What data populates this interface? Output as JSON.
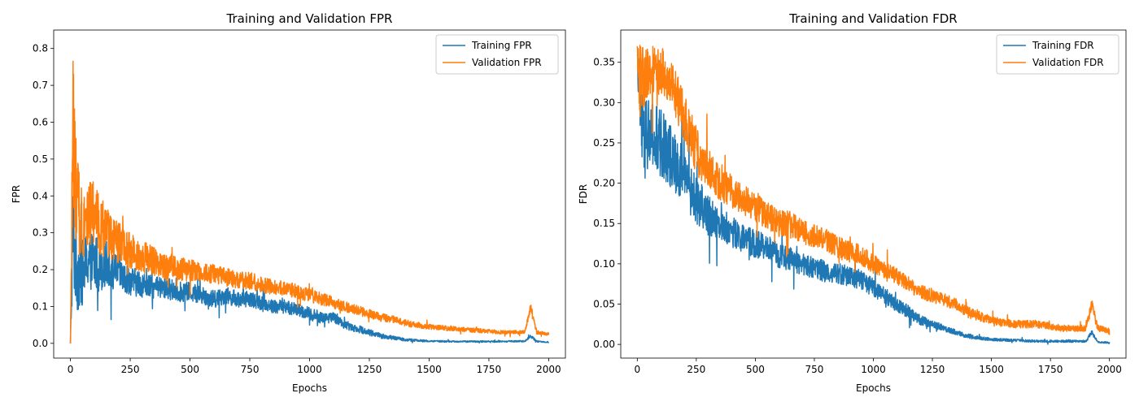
{
  "chart_data": [
    {
      "type": "line",
      "title": "Training and Validation FPR",
      "xlabel": "Epochs",
      "ylabel": "FPR",
      "xlim": [
        -70,
        2070
      ],
      "ylim": [
        -0.04,
        0.85
      ],
      "xticks": [
        0,
        250,
        500,
        750,
        1000,
        1250,
        1500,
        1750,
        2000
      ],
      "yticks": [
        0.0,
        0.1,
        0.2,
        0.3,
        0.4,
        0.5,
        0.6,
        0.7,
        0.8
      ],
      "ytick_labels": [
        "0.0",
        "0.1",
        "0.2",
        "0.3",
        "0.4",
        "0.5",
        "0.6",
        "0.7",
        "0.8"
      ],
      "grid": false,
      "legend_position": "top-right",
      "series": [
        {
          "name": "Training FPR",
          "color": "#1f77b4",
          "x": [
            0,
            10,
            25,
            50,
            75,
            100,
            125,
            150,
            175,
            200,
            225,
            250,
            300,
            350,
            400,
            450,
            500,
            550,
            600,
            650,
            700,
            750,
            800,
            850,
            900,
            950,
            1000,
            1050,
            1100,
            1150,
            1200,
            1250,
            1300,
            1350,
            1400,
            1450,
            1500,
            1600,
            1700,
            1800,
            1900,
            1925,
            1950,
            2000
          ],
          "values": [
            0.0,
            0.3,
            0.2,
            0.19,
            0.23,
            0.22,
            0.21,
            0.22,
            0.19,
            0.2,
            0.17,
            0.17,
            0.16,
            0.15,
            0.15,
            0.14,
            0.14,
            0.13,
            0.12,
            0.13,
            0.12,
            0.12,
            0.11,
            0.1,
            0.1,
            0.09,
            0.08,
            0.07,
            0.07,
            0.05,
            0.04,
            0.03,
            0.02,
            0.015,
            0.01,
            0.008,
            0.006,
            0.005,
            0.005,
            0.005,
            0.006,
            0.02,
            0.005,
            0.003
          ],
          "noise": [
            0.0,
            0.15,
            0.12,
            0.09,
            0.08,
            0.08,
            0.07,
            0.06,
            0.05,
            0.05,
            0.045,
            0.04,
            0.035,
            0.03,
            0.03,
            0.028,
            0.026,
            0.025,
            0.024,
            0.023,
            0.022,
            0.021,
            0.02,
            0.02,
            0.019,
            0.018,
            0.018,
            0.016,
            0.014,
            0.012,
            0.01,
            0.009,
            0.007,
            0.005,
            0.004,
            0.003,
            0.002,
            0.002,
            0.002,
            0.002,
            0.002,
            0.004,
            0.002,
            0.001
          ]
        },
        {
          "name": "Validation FPR",
          "color": "#ff7f0e",
          "x": [
            0,
            10,
            25,
            50,
            75,
            100,
            125,
            150,
            175,
            200,
            225,
            250,
            300,
            350,
            400,
            450,
            500,
            550,
            600,
            650,
            700,
            750,
            800,
            850,
            900,
            950,
            1000,
            1050,
            1100,
            1150,
            1200,
            1250,
            1300,
            1350,
            1400,
            1450,
            1500,
            1600,
            1700,
            1800,
            1900,
            1925,
            1950,
            2000
          ],
          "values": [
            0.0,
            0.6,
            0.38,
            0.33,
            0.35,
            0.35,
            0.32,
            0.3,
            0.28,
            0.27,
            0.26,
            0.25,
            0.24,
            0.22,
            0.21,
            0.2,
            0.2,
            0.19,
            0.19,
            0.18,
            0.17,
            0.17,
            0.16,
            0.15,
            0.15,
            0.14,
            0.13,
            0.12,
            0.11,
            0.1,
            0.09,
            0.08,
            0.07,
            0.065,
            0.055,
            0.05,
            0.045,
            0.04,
            0.035,
            0.03,
            0.03,
            0.1,
            0.03,
            0.025
          ],
          "noise": [
            0.0,
            0.2,
            0.14,
            0.1,
            0.09,
            0.09,
            0.08,
            0.07,
            0.06,
            0.06,
            0.05,
            0.05,
            0.045,
            0.04,
            0.035,
            0.033,
            0.03,
            0.028,
            0.026,
            0.025,
            0.024,
            0.023,
            0.022,
            0.021,
            0.02,
            0.019,
            0.018,
            0.017,
            0.016,
            0.015,
            0.013,
            0.012,
            0.011,
            0.01,
            0.009,
            0.008,
            0.007,
            0.006,
            0.006,
            0.005,
            0.005,
            0.01,
            0.005,
            0.004
          ]
        }
      ]
    },
    {
      "type": "line",
      "title": "Training and Validation FDR",
      "xlabel": "Epochs",
      "ylabel": "FDR",
      "xlim": [
        -70,
        2070
      ],
      "ylim": [
        -0.017,
        0.39
      ],
      "xticks": [
        0,
        250,
        500,
        750,
        1000,
        1250,
        1500,
        1750,
        2000
      ],
      "yticks": [
        0.0,
        0.05,
        0.1,
        0.15,
        0.2,
        0.25,
        0.3,
        0.35
      ],
      "ytick_labels": [
        "0.00",
        "0.05",
        "0.10",
        "0.15",
        "0.20",
        "0.25",
        "0.30",
        "0.35"
      ],
      "grid": false,
      "legend_position": "top-right",
      "series": [
        {
          "name": "Training FDR",
          "color": "#1f77b4",
          "x": [
            0,
            10,
            25,
            50,
            75,
            100,
            125,
            150,
            175,
            200,
            225,
            250,
            300,
            350,
            400,
            450,
            500,
            550,
            600,
            650,
            700,
            750,
            800,
            850,
            900,
            950,
            1000,
            1050,
            1100,
            1150,
            1200,
            1250,
            1300,
            1350,
            1400,
            1450,
            1500,
            1600,
            1700,
            1800,
            1900,
            1925,
            1950,
            2000
          ],
          "values": [
            0.36,
            0.3,
            0.25,
            0.26,
            0.25,
            0.25,
            0.24,
            0.23,
            0.22,
            0.21,
            0.19,
            0.18,
            0.16,
            0.15,
            0.14,
            0.13,
            0.125,
            0.12,
            0.11,
            0.105,
            0.1,
            0.095,
            0.09,
            0.088,
            0.085,
            0.08,
            0.07,
            0.06,
            0.05,
            0.04,
            0.03,
            0.025,
            0.02,
            0.015,
            0.01,
            0.008,
            0.006,
            0.005,
            0.004,
            0.004,
            0.004,
            0.015,
            0.003,
            0.002
          ],
          "noise": [
            0.0,
            0.06,
            0.05,
            0.05,
            0.05,
            0.045,
            0.04,
            0.04,
            0.035,
            0.035,
            0.03,
            0.03,
            0.025,
            0.02,
            0.02,
            0.018,
            0.017,
            0.016,
            0.015,
            0.015,
            0.014,
            0.014,
            0.013,
            0.013,
            0.013,
            0.012,
            0.011,
            0.01,
            0.009,
            0.008,
            0.006,
            0.005,
            0.004,
            0.003,
            0.003,
            0.002,
            0.002,
            0.0015,
            0.0015,
            0.0015,
            0.0015,
            0.003,
            0.001,
            0.001
          ]
        },
        {
          "name": "Validation FDR",
          "color": "#ff7f0e",
          "x": [
            0,
            10,
            25,
            50,
            75,
            100,
            125,
            150,
            175,
            200,
            225,
            250,
            300,
            350,
            400,
            450,
            500,
            550,
            600,
            650,
            700,
            750,
            800,
            850,
            900,
            950,
            1000,
            1050,
            1100,
            1150,
            1200,
            1250,
            1300,
            1350,
            1400,
            1450,
            1500,
            1600,
            1700,
            1800,
            1900,
            1925,
            1950,
            2000
          ],
          "values": [
            0.37,
            0.33,
            0.33,
            0.34,
            0.34,
            0.34,
            0.33,
            0.32,
            0.3,
            0.28,
            0.26,
            0.24,
            0.22,
            0.2,
            0.19,
            0.18,
            0.17,
            0.16,
            0.15,
            0.15,
            0.14,
            0.135,
            0.13,
            0.12,
            0.115,
            0.11,
            0.1,
            0.09,
            0.085,
            0.075,
            0.065,
            0.06,
            0.055,
            0.05,
            0.04,
            0.035,
            0.03,
            0.025,
            0.025,
            0.02,
            0.02,
            0.05,
            0.02,
            0.017
          ],
          "noise": [
            0.0,
            0.05,
            0.04,
            0.03,
            0.03,
            0.03,
            0.03,
            0.03,
            0.03,
            0.03,
            0.03,
            0.03,
            0.025,
            0.022,
            0.02,
            0.02,
            0.018,
            0.017,
            0.016,
            0.016,
            0.015,
            0.015,
            0.014,
            0.014,
            0.013,
            0.013,
            0.012,
            0.011,
            0.011,
            0.01,
            0.009,
            0.008,
            0.008,
            0.007,
            0.007,
            0.006,
            0.005,
            0.005,
            0.005,
            0.004,
            0.004,
            0.008,
            0.004,
            0.003
          ]
        }
      ]
    }
  ]
}
